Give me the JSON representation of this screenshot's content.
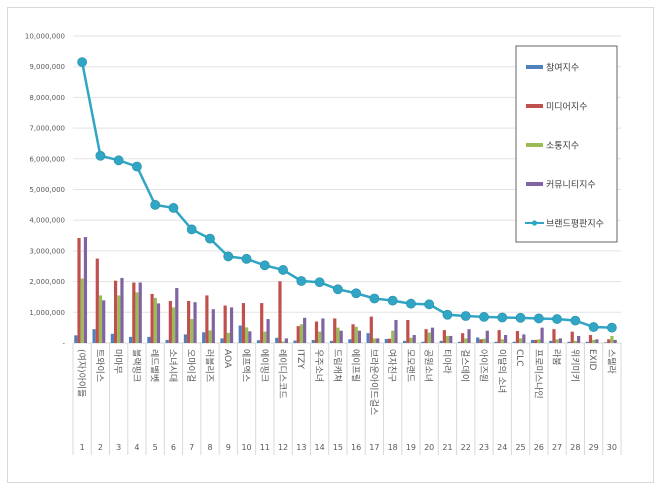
{
  "chart_data": {
    "type": "bar+line",
    "categories": [
      "(여자)아이들",
      "트와이스",
      "마마무",
      "블랙핑크",
      "레드벨벳",
      "소녀시대",
      "오마이걸",
      "러블리즈",
      "AOA",
      "에프엑스",
      "에이핑크",
      "레이디스코드",
      "ITZY",
      "우주소녀",
      "드림캐쳐",
      "에이프릴",
      "브라운아이드걸스",
      "여자친구",
      "모모랜드",
      "공원소녀",
      "티아라",
      "걸스데이",
      "아이즈원",
      "이달의 소녀",
      "CLC",
      "프로미스나인",
      "라붐",
      "위키미키",
      "EXID",
      "스텔라"
    ],
    "ranks": [
      "1",
      "2",
      "3",
      "4",
      "5",
      "6",
      "7",
      "8",
      "9",
      "10",
      "11",
      "12",
      "13",
      "14",
      "15",
      "16",
      "17",
      "18",
      "19",
      "20",
      "21",
      "22",
      "23",
      "24",
      "25",
      "26",
      "27",
      "28",
      "29",
      "30"
    ],
    "ylim": [
      0,
      10000000
    ],
    "yticks": [
      "-",
      "1,000,000",
      "2,000,000",
      "3,000,000",
      "4,000,000",
      "5,000,000",
      "6,000,000",
      "7,000,000",
      "8,000,000",
      "9,000,000",
      "10,000,000"
    ],
    "grid": true,
    "legend_position": "right",
    "series": [
      {
        "name": "참여지수",
        "type": "bar",
        "color": "#4f81bd",
        "values": [
          250000,
          450000,
          300000,
          200000,
          200000,
          100000,
          280000,
          350000,
          150000,
          570000,
          90000,
          170000,
          80000,
          100000,
          70000,
          120000,
          320000,
          130000,
          70000,
          40000,
          70000,
          40000,
          180000,
          40000,
          40000,
          100000,
          70000,
          40000,
          40000,
          20000
        ]
      },
      {
        "name": "미디어지수",
        "type": "bar",
        "color": "#c0504d",
        "values": [
          3420000,
          2750000,
          2030000,
          1970000,
          1600000,
          1370000,
          1370000,
          1550000,
          1220000,
          1300000,
          1300000,
          2010000,
          550000,
          700000,
          800000,
          610000,
          860000,
          140000,
          750000,
          450000,
          420000,
          320000,
          120000,
          420000,
          390000,
          100000,
          450000,
          370000,
          260000,
          120000
        ]
      },
      {
        "name": "소통지수",
        "type": "bar",
        "color": "#9bbb59",
        "values": [
          2100000,
          1550000,
          1550000,
          1650000,
          1470000,
          1160000,
          780000,
          410000,
          330000,
          510000,
          370000,
          50000,
          610000,
          370000,
          500000,
          530000,
          150000,
          400000,
          170000,
          340000,
          230000,
          150000,
          140000,
          120000,
          150000,
          120000,
          120000,
          70000,
          100000,
          230000
        ]
      },
      {
        "name": "커뮤니티지수",
        "type": "bar",
        "color": "#8064a2",
        "values": [
          3450000,
          1390000,
          2120000,
          1970000,
          1290000,
          1790000,
          1330000,
          1100000,
          1160000,
          380000,
          780000,
          150000,
          820000,
          800000,
          400000,
          400000,
          150000,
          750000,
          260000,
          500000,
          230000,
          450000,
          400000,
          260000,
          280000,
          500000,
          150000,
          230000,
          120000,
          100000
        ]
      },
      {
        "name": "브랜드평판지수",
        "type": "line",
        "color": "#31a5c4",
        "values": [
          9150000,
          6100000,
          5950000,
          5750000,
          4500000,
          4400000,
          3700000,
          3400000,
          2820000,
          2740000,
          2530000,
          2380000,
          2020000,
          1980000,
          1750000,
          1620000,
          1450000,
          1380000,
          1280000,
          1260000,
          920000,
          880000,
          850000,
          830000,
          820000,
          800000,
          780000,
          730000,
          520000,
          500000
        ]
      }
    ]
  }
}
